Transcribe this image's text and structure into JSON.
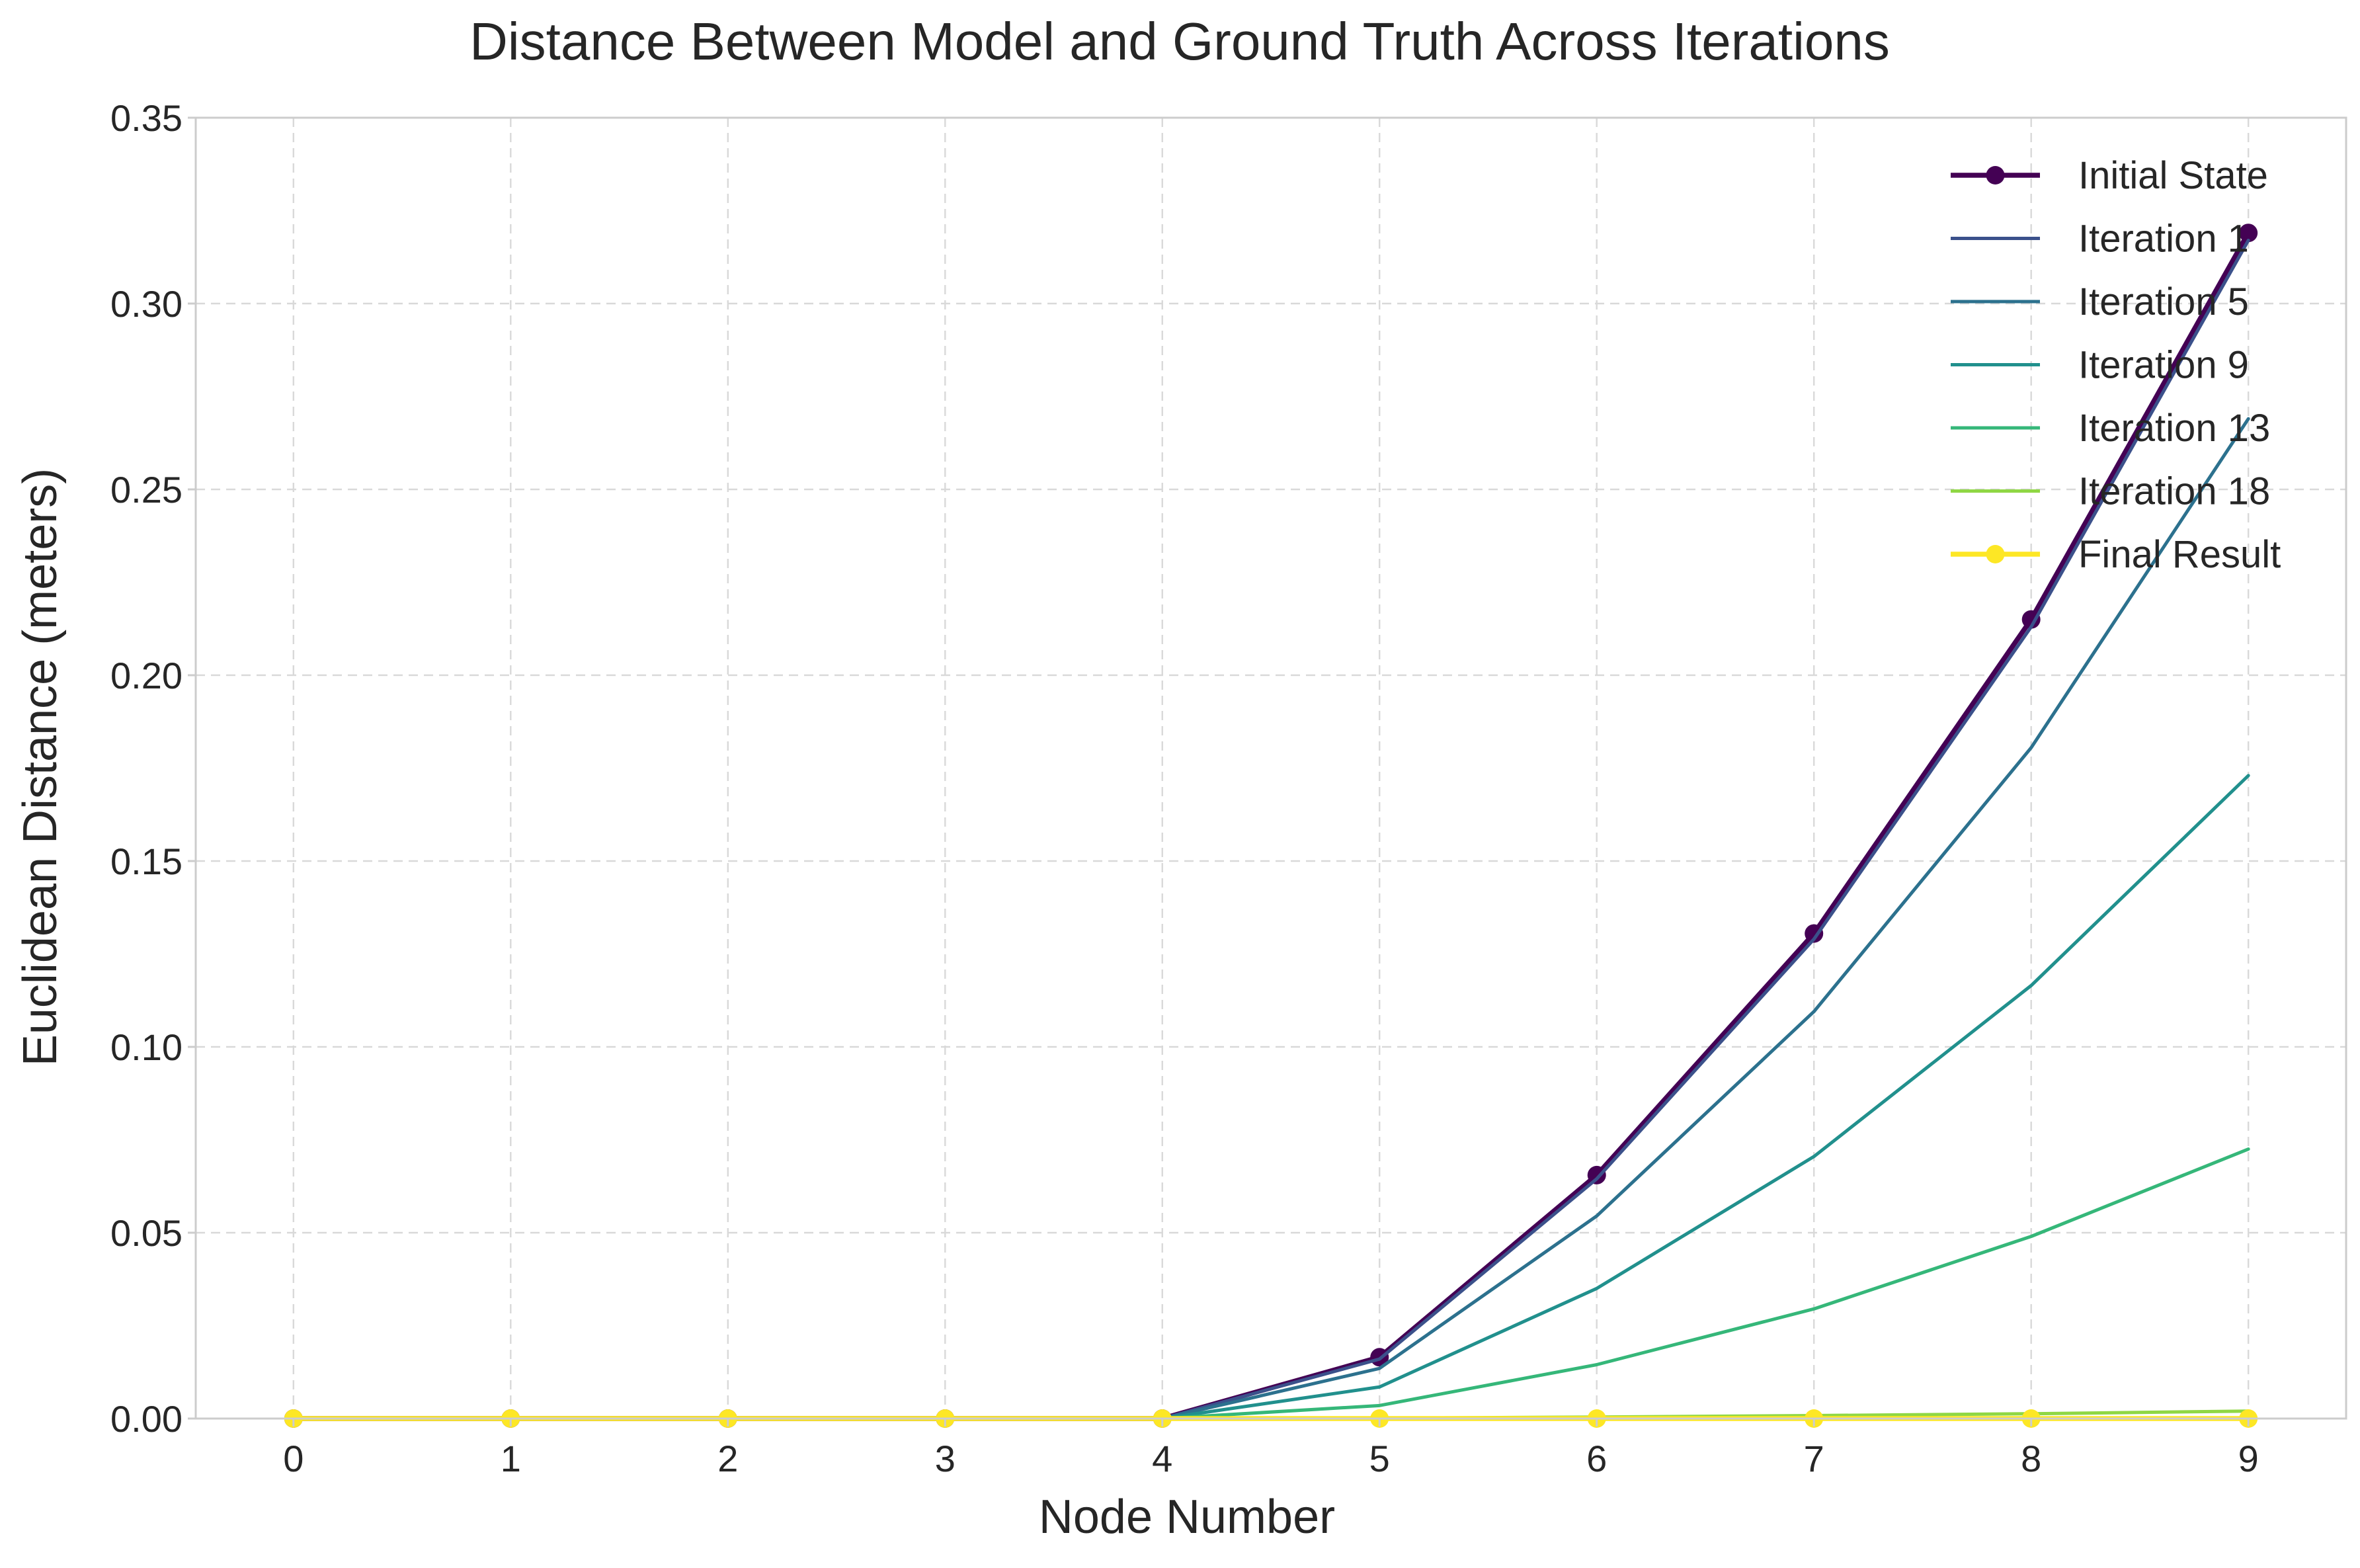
{
  "chart_data": {
    "type": "line",
    "title": "Distance Between Model and Ground Truth Across Iterations",
    "xlabel": "Node Number",
    "ylabel": "Euclidean Distance (meters)",
    "x": [
      0,
      1,
      2,
      3,
      4,
      5,
      6,
      7,
      8,
      9
    ],
    "xlim": [
      -0.45,
      9.45
    ],
    "ylim": [
      0,
      0.35
    ],
    "xticks": [
      "0",
      "1",
      "2",
      "3",
      "4",
      "5",
      "6",
      "7",
      "8",
      "9"
    ],
    "yticks": [
      "0.00",
      "0.05",
      "0.10",
      "0.15",
      "0.20",
      "0.25",
      "0.30",
      "0.35"
    ],
    "grid": true,
    "legend": {
      "position": "top-right"
    },
    "series": [
      {
        "name": "Initial State",
        "color": "#440154",
        "markers": true,
        "emphasis": true,
        "values": [
          0,
          0,
          0,
          0,
          0,
          0.0165,
          0.0655,
          0.1305,
          0.215,
          0.319
        ]
      },
      {
        "name": "Iteration 1",
        "color": "#3b518b",
        "markers": false,
        "emphasis": false,
        "values": [
          0,
          0,
          0,
          0,
          0,
          0.016,
          0.0645,
          0.129,
          0.213,
          0.317
        ]
      },
      {
        "name": "Iteration 5",
        "color": "#2c718e",
        "markers": false,
        "emphasis": false,
        "values": [
          0,
          0,
          0,
          0,
          0,
          0.0135,
          0.0545,
          0.1095,
          0.1805,
          0.269
        ]
      },
      {
        "name": "Iteration 9",
        "color": "#21908d",
        "markers": false,
        "emphasis": false,
        "values": [
          0,
          0,
          0,
          0,
          0,
          0.0085,
          0.035,
          0.0705,
          0.1165,
          0.173
        ]
      },
      {
        "name": "Iteration 13",
        "color": "#35b779",
        "markers": false,
        "emphasis": false,
        "values": [
          0,
          0,
          0,
          0,
          0,
          0.0035,
          0.0145,
          0.0295,
          0.049,
          0.0725
        ]
      },
      {
        "name": "Iteration 18",
        "color": "#8fd744",
        "markers": false,
        "emphasis": false,
        "values": [
          0,
          0,
          0,
          0,
          0,
          0.0001,
          0.0004,
          0.0008,
          0.0013,
          0.002
        ]
      },
      {
        "name": "Final Result",
        "color": "#fde725",
        "markers": true,
        "emphasis": true,
        "values": [
          0,
          0,
          0,
          0,
          0,
          0,
          0,
          0,
          0,
          0
        ]
      }
    ]
  }
}
